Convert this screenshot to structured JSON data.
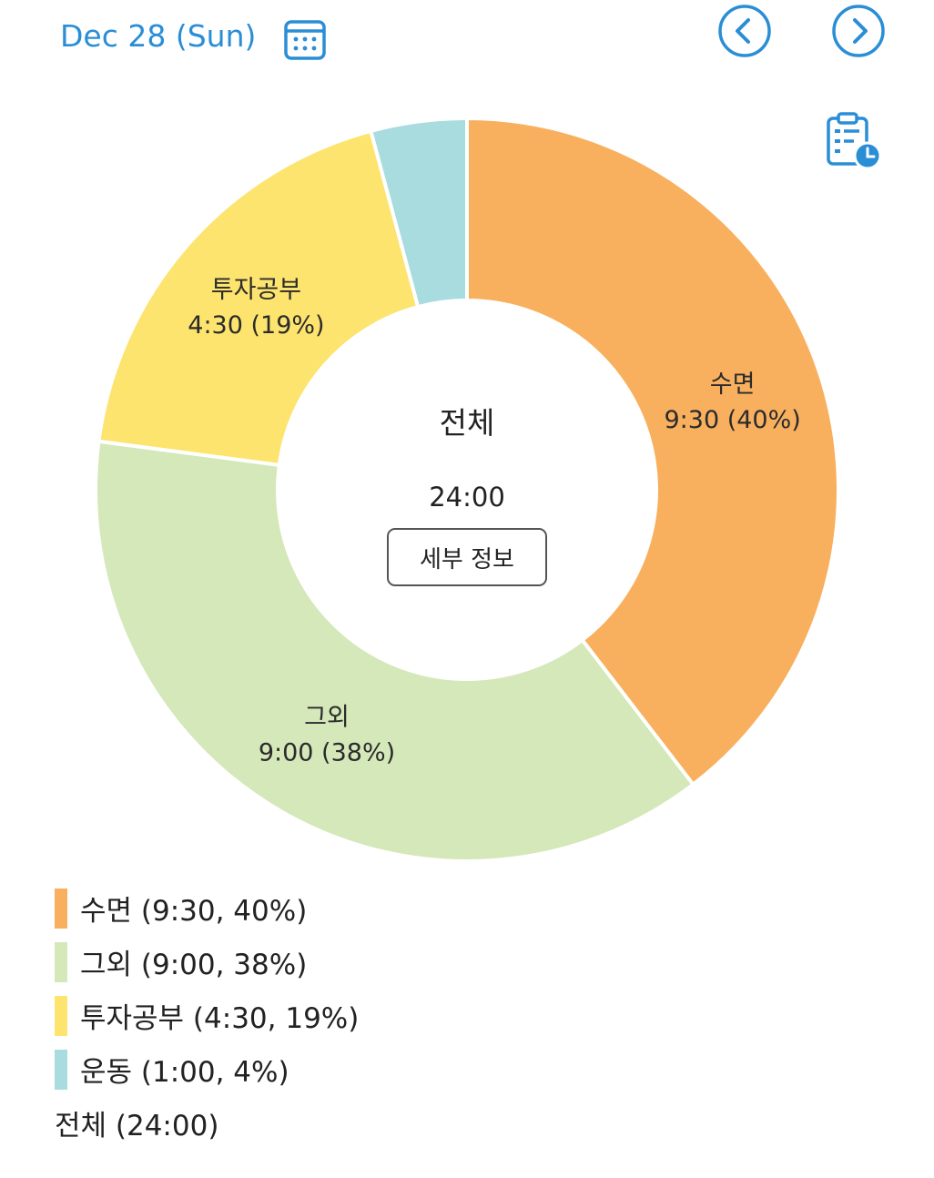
{
  "header": {
    "date": "Dec 28 (Sun)"
  },
  "icons": {
    "calendar": "calendar-icon",
    "prev": "chevron-left-icon",
    "next": "chevron-right-icon",
    "report": "clipboard-clock-icon"
  },
  "colors": {
    "accent": "#2a8ed6",
    "sleep": "#f8b05f",
    "other": "#d5e8b9",
    "study": "#fce46e",
    "exercise": "#a8dcdf"
  },
  "center": {
    "title": "전체",
    "total": "24:00",
    "detail_button": "세부 정보"
  },
  "chart_data": {
    "type": "pie",
    "donut": true,
    "unit": "hours",
    "slices": [
      {
        "name": "수면",
        "value": 9.5,
        "time": "9:30",
        "percent": 40,
        "color": "#f8b05f",
        "label_line1": "수면",
        "label_line2": "9:30 (40%)",
        "legend": "수면 (9:30, 40%)"
      },
      {
        "name": "그외",
        "value": 9.0,
        "time": "9:00",
        "percent": 38,
        "color": "#d5e8b9",
        "label_line1": "그외",
        "label_line2": "9:00 (38%)",
        "legend": "그외 (9:00, 38%)"
      },
      {
        "name": "투자공부",
        "value": 4.5,
        "time": "4:30",
        "percent": 19,
        "color": "#fce46e",
        "label_line1": "투자공부",
        "label_line2": "4:30 (19%)",
        "legend": "투자공부 (4:30, 19%)"
      },
      {
        "name": "운동",
        "value": 1.0,
        "time": "1:00",
        "percent": 4,
        "color": "#a8dcdf",
        "label_line1": "",
        "label_line2": "",
        "legend": "운동 (1:00, 4%)"
      }
    ],
    "total_legend": "전체 (24:00)",
    "legend_position": "bottom-left"
  }
}
